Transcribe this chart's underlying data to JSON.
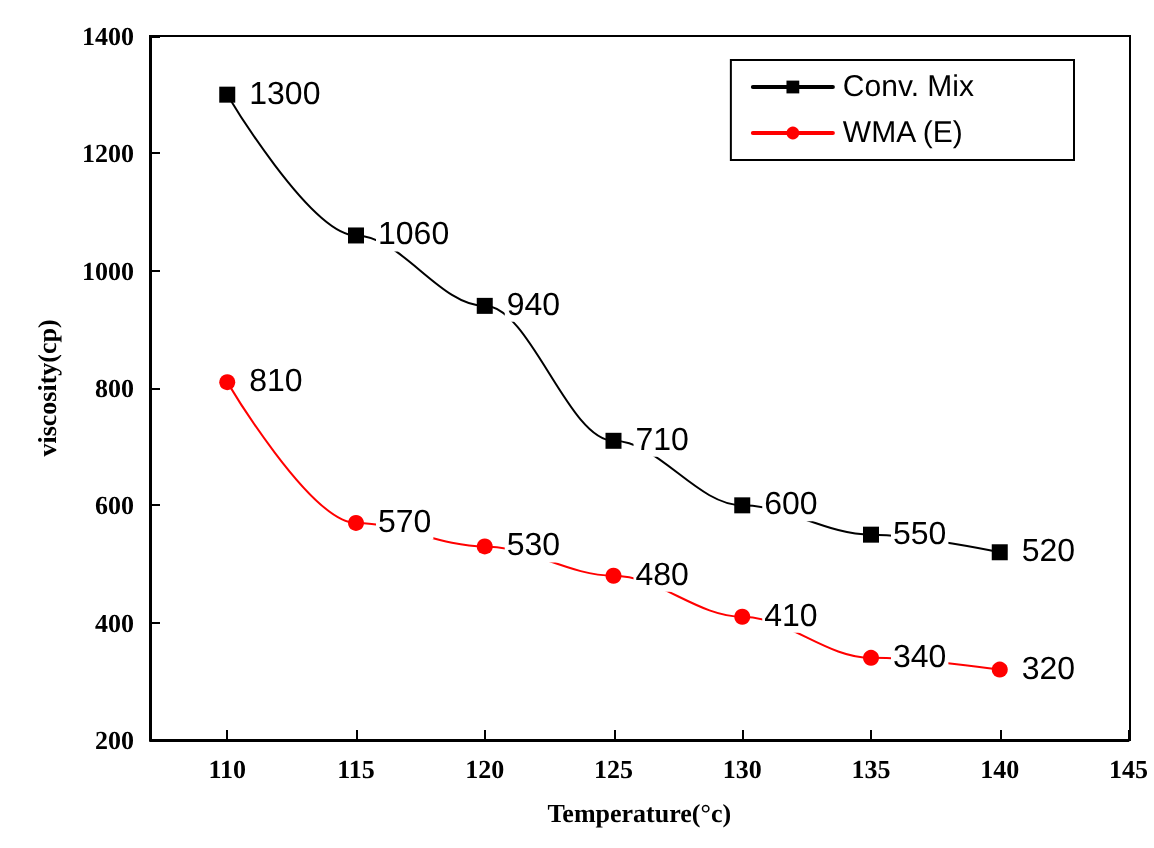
{
  "chart_data": {
    "type": "line",
    "xlabel": "Temperature(°c)",
    "ylabel": "viscosity(cp)",
    "x": [
      110,
      115,
      120,
      125,
      130,
      135,
      140
    ],
    "series": [
      {
        "name": "Conv. Mix",
        "color": "#000000",
        "marker": "square",
        "values": [
          1300,
          1060,
          940,
          710,
          600,
          550,
          520
        ]
      },
      {
        "name": "WMA (E)",
        "color": "#ff0000",
        "marker": "circle",
        "values": [
          810,
          570,
          530,
          480,
          410,
          340,
          320
        ]
      }
    ],
    "xlim": [
      107,
      145
    ],
    "xticks": [
      110,
      115,
      120,
      125,
      130,
      135,
      140,
      145
    ],
    "ylim": [
      200,
      1400
    ],
    "yticks": [
      200,
      400,
      600,
      800,
      1000,
      1200,
      1400
    ],
    "grid": false,
    "legend": "top right",
    "data_labels": true,
    "line_style": "solid"
  }
}
